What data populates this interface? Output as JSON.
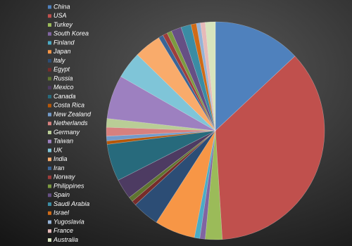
{
  "chart_data": {
    "type": "pie",
    "categories": [
      "China",
      "USA",
      "Turkey",
      "South Korea",
      "Finland",
      "Japan",
      "Italy",
      "Egypt",
      "Russia",
      "Mexico",
      "Canada",
      "Costa Rica",
      "New Zealand",
      "Netherlands",
      "Germany",
      "Taiwan",
      "UK",
      "India",
      "Iran",
      "Norway",
      "Philippines",
      "Spain",
      "Saudi Arabia",
      "Israel",
      "Yugoslavia",
      "France",
      "Australia"
    ],
    "values": [
      13,
      36,
      2.5,
      0.8,
      0.8,
      6,
      4,
      0.7,
      0.7,
      3,
      5.5,
      0.5,
      0.7,
      1.3,
      1.3,
      6.5,
      4,
      4,
      0.7,
      0.7,
      0.7,
      1.5,
      1.5,
      0.8,
      0.6,
      0.7,
      1.5
    ],
    "colors": [
      "#4f81bd",
      "#c0504d",
      "#9bbb59",
      "#8064a2",
      "#4bacc6",
      "#f79646",
      "#2c4d75",
      "#772c2a",
      "#5f7530",
      "#4d3b62",
      "#276a7c",
      "#b65708",
      "#729aca",
      "#d7807e",
      "#b9cd96",
      "#9d80c0",
      "#7fc5d8",
      "#f9ab6b",
      "#3a6496",
      "#9e3d3b",
      "#7c9a40",
      "#664f84",
      "#3b8ca4",
      "#d06b17",
      "#95b3d7",
      "#e6b9b8",
      "#d7e4bd"
    ],
    "legend": "left"
  }
}
